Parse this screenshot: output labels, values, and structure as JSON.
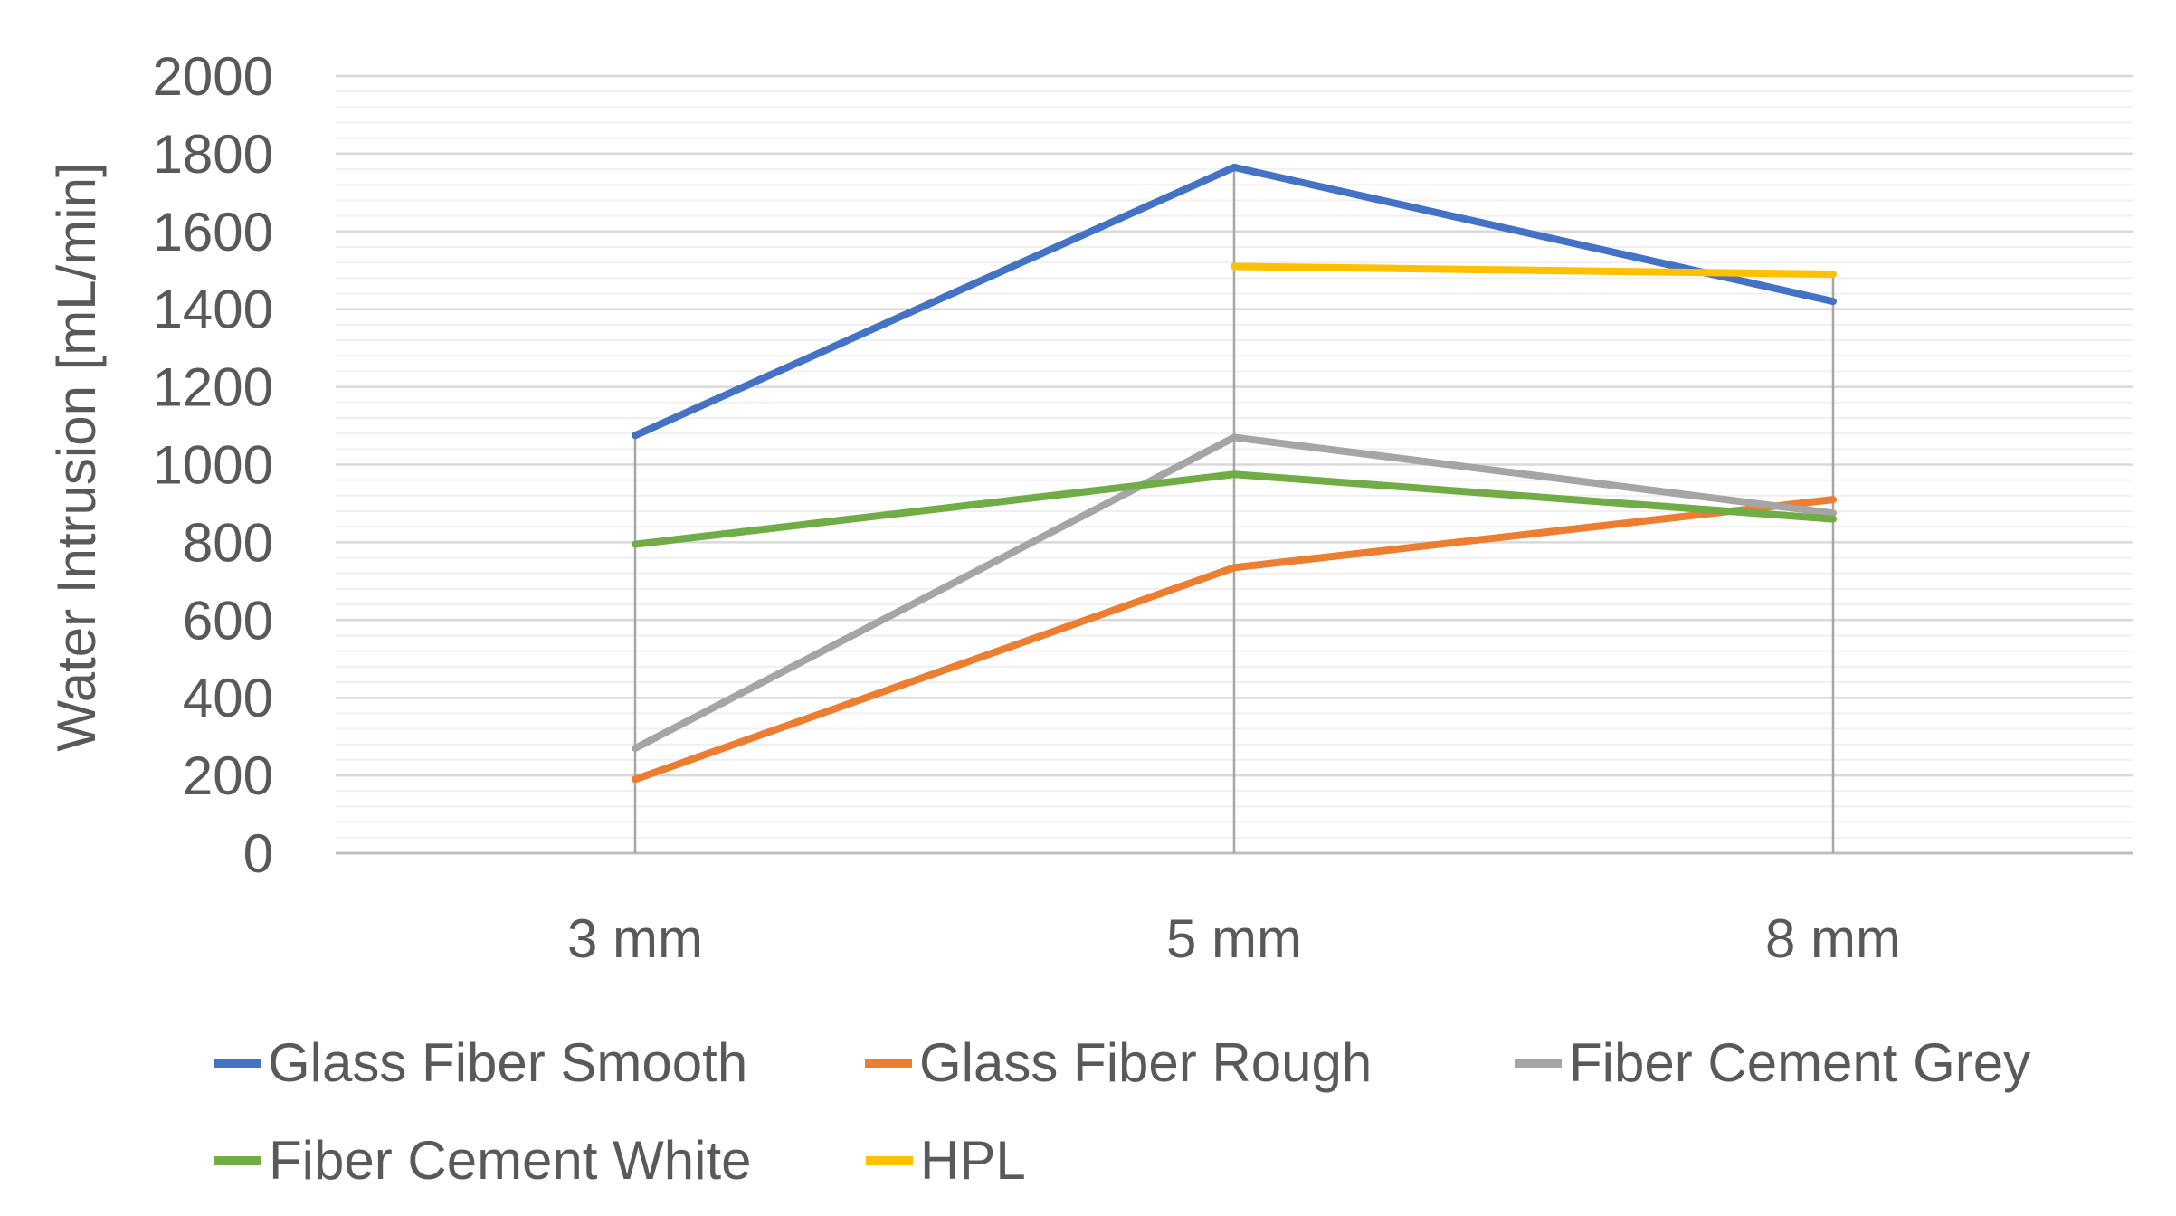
{
  "chart_data": {
    "type": "line",
    "title": "",
    "xlabel": "",
    "ylabel": "Water Intrusion [mL/min]",
    "categories": [
      "3 mm",
      "5 mm",
      "8 mm"
    ],
    "series": [
      {
        "name": "Glass Fiber Smooth",
        "color": "#4472C4",
        "values": [
          1075,
          1765,
          1420
        ]
      },
      {
        "name": "Glass Fiber Rough",
        "color": "#ED7D31",
        "values": [
          190,
          735,
          910
        ]
      },
      {
        "name": "Fiber Cement Grey",
        "color": "#A5A5A5",
        "values": [
          270,
          1070,
          875
        ]
      },
      {
        "name": "Fiber Cement White",
        "color": "#70AD47",
        "values": [
          795,
          975,
          860
        ]
      },
      {
        "name": "HPL",
        "color": "#FFC000",
        "values": [
          null,
          1510,
          1490
        ]
      }
    ],
    "ylim": [
      0,
      2000
    ],
    "y_major_unit": 200,
    "y_minor_unit": 40,
    "y_tick_labels": [
      "0",
      "200",
      "400",
      "600",
      "800",
      "1000",
      "1200",
      "1400",
      "1600",
      "1800",
      "2000"
    ],
    "grid": "major and minor horizontal gridlines",
    "drop_lines": true,
    "legend_position": "bottom"
  },
  "colors": {
    "text": "#595959",
    "gridline_major": "#D9D9D9",
    "gridline_minor": "#F0F0F0",
    "axis_line": "#BFBFBF",
    "drop_line": "#A6A6A6",
    "background": "#FFFFFF"
  }
}
